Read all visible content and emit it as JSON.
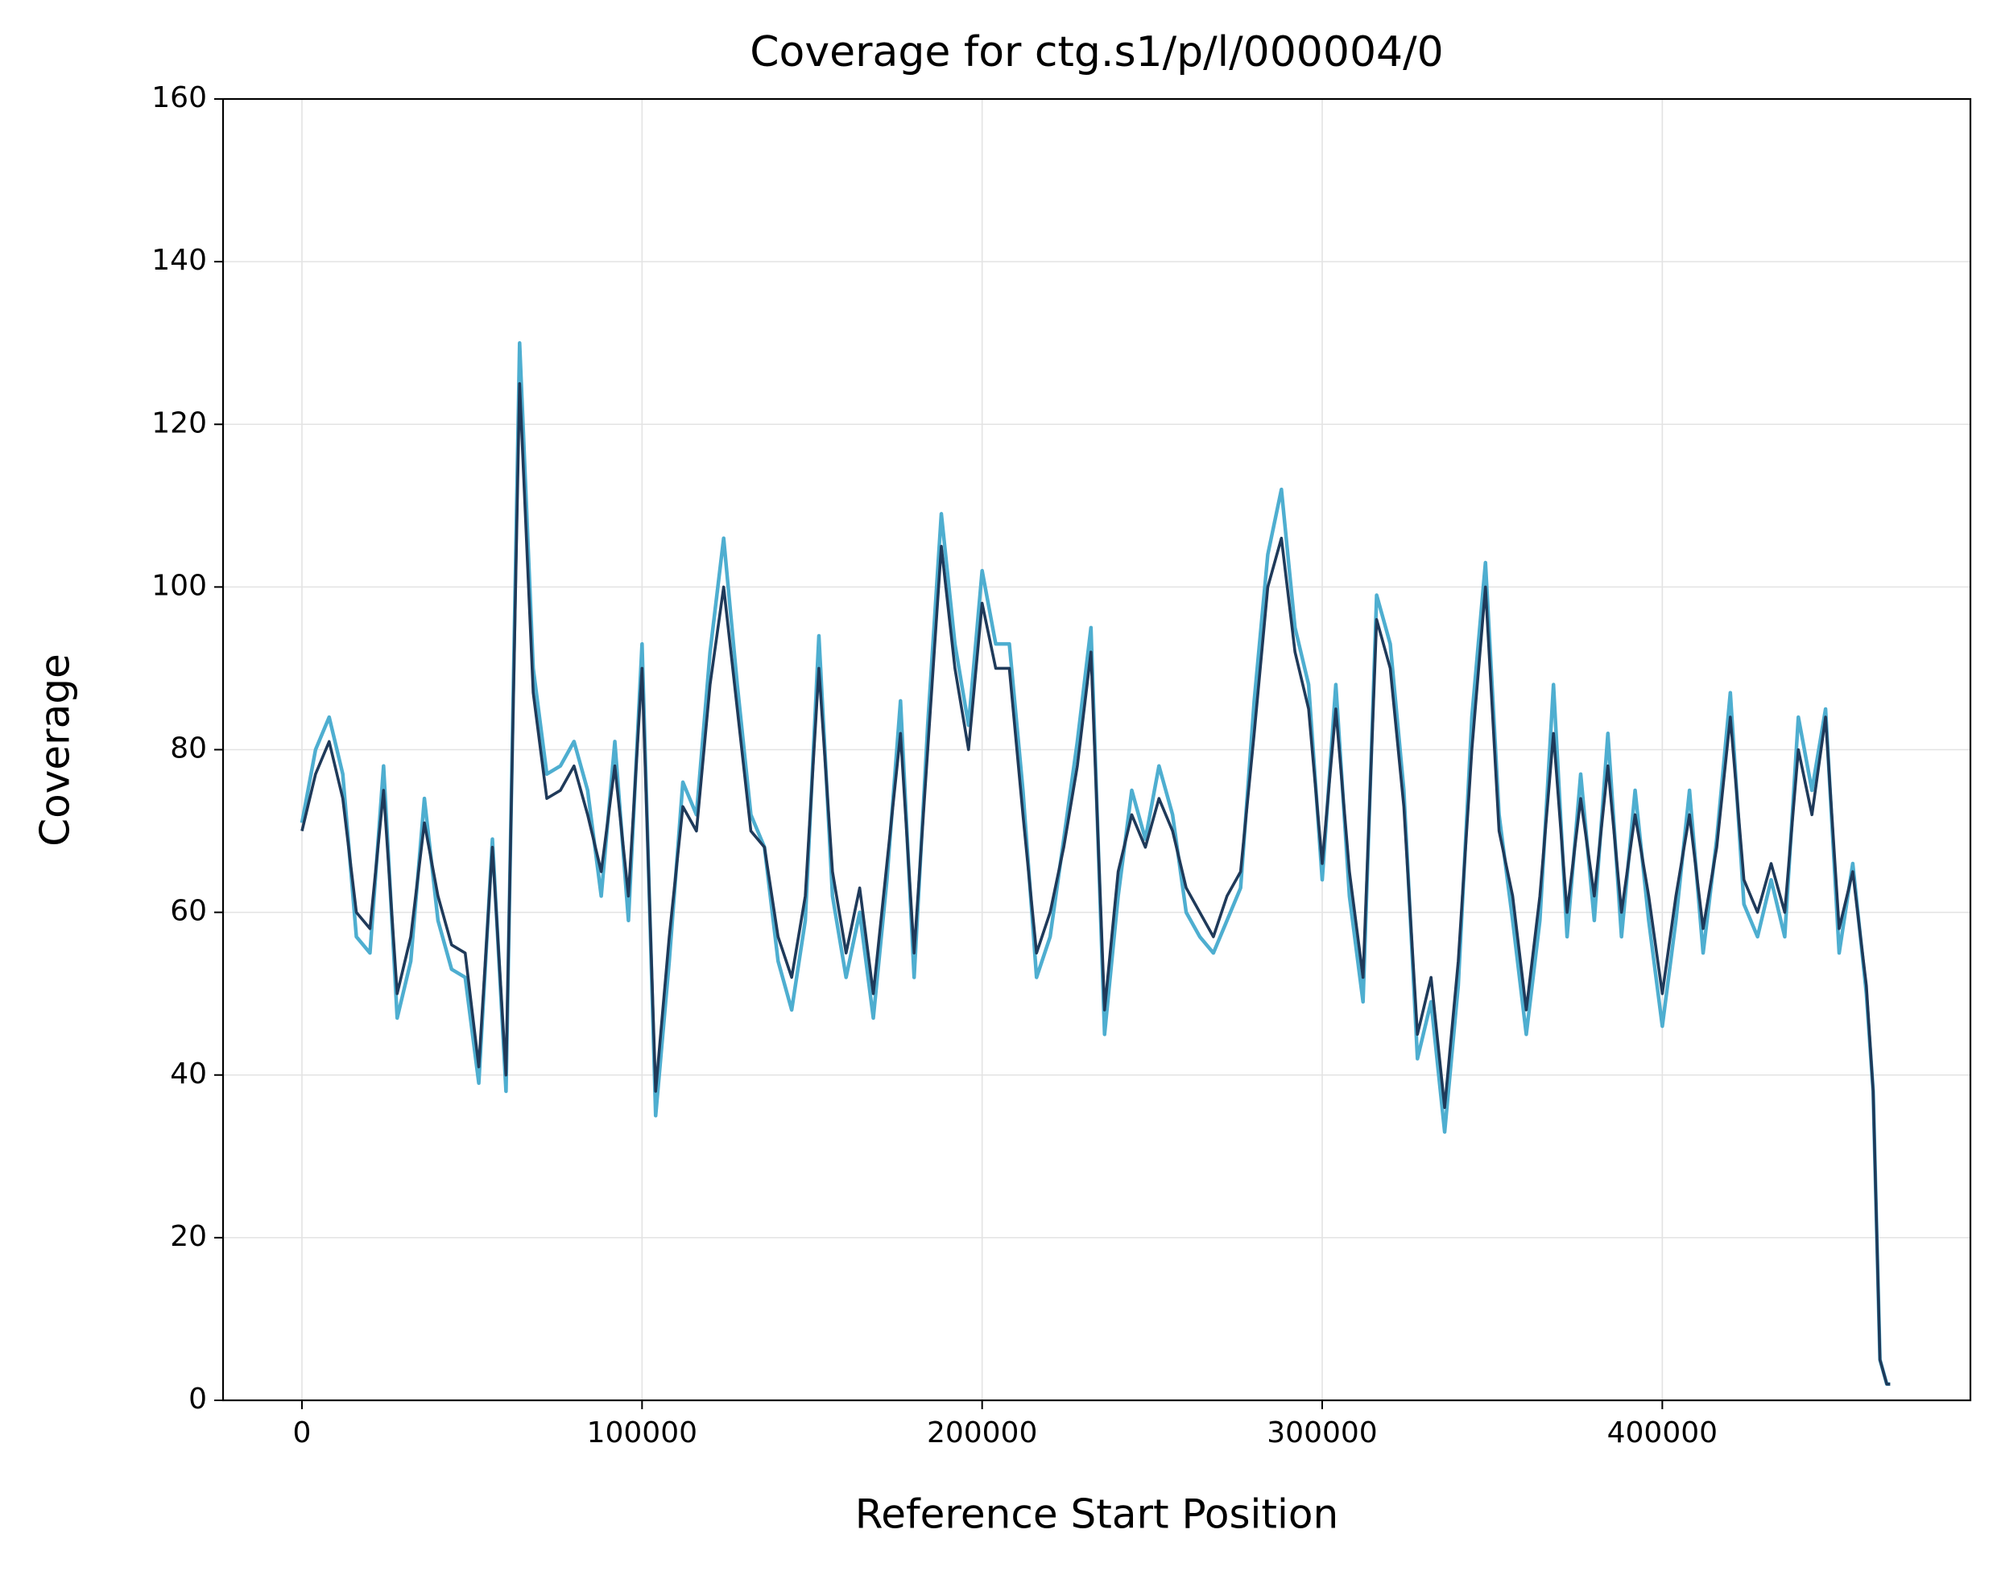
{
  "chart_data": {
    "type": "line",
    "title": "Coverage for ctg.s1/p/l/000004/0",
    "x_label": "Reference Start Position",
    "y_label": "Coverage",
    "x": [
      0,
      4000,
      8000,
      12000,
      16000,
      20000,
      24000,
      28000,
      32000,
      36000,
      40000,
      44000,
      48000,
      52000,
      56000,
      60000,
      64000,
      68000,
      72000,
      76000,
      80000,
      84000,
      88000,
      92000,
      96000,
      100000,
      104000,
      108000,
      112000,
      116000,
      120000,
      124000,
      128000,
      132000,
      136000,
      140000,
      144000,
      148000,
      152000,
      156000,
      160000,
      164000,
      168000,
      172000,
      176000,
      180000,
      184000,
      188000,
      192000,
      196000,
      200000,
      204000,
      208000,
      212000,
      216000,
      220000,
      224000,
      228000,
      232000,
      236000,
      240000,
      244000,
      248000,
      252000,
      256000,
      260000,
      264000,
      268000,
      272000,
      276000,
      280000,
      284000,
      288000,
      292000,
      296000,
      300000,
      304000,
      308000,
      312000,
      316000,
      320000,
      324000,
      328000,
      332000,
      336000,
      340000,
      344000,
      348000,
      352000,
      356000,
      360000,
      364000,
      368000,
      372000,
      376000,
      380000,
      384000,
      388000,
      392000,
      396000,
      400000,
      404000,
      408000,
      412000,
      416000,
      420000,
      424000,
      428000,
      432000,
      436000,
      440000,
      444000,
      448000,
      452000,
      456000,
      460000,
      462000,
      464000,
      466000,
      467000
    ],
    "series": [
      {
        "color": "#4eaed0",
        "values": [
          71,
          80,
          84,
          77,
          57,
          55,
          78,
          47,
          54,
          74,
          59,
          53,
          52,
          39,
          69,
          38,
          130,
          90,
          77,
          78,
          81,
          75,
          62,
          81,
          59,
          93,
          35,
          54,
          76,
          72,
          92,
          106,
          88,
          72,
          68,
          54,
          48,
          59,
          94,
          62,
          52,
          60,
          47,
          64,
          86,
          52,
          83,
          109,
          93,
          83,
          102,
          93,
          93,
          75,
          52,
          57,
          69,
          81,
          95,
          45,
          62,
          75,
          69,
          78,
          72,
          60,
          57,
          55,
          59,
          63,
          86,
          104,
          112,
          95,
          88,
          64,
          88,
          62,
          49,
          99,
          93,
          75,
          42,
          49,
          33,
          51,
          84,
          103,
          72,
          59,
          45,
          59,
          88,
          57,
          77,
          59,
          82,
          57,
          75,
          59,
          46,
          59,
          75,
          55,
          69,
          87,
          61,
          57,
          64,
          57,
          84,
          75,
          85,
          55,
          66,
          50,
          38,
          5,
          2,
          2
        ]
      },
      {
        "color": "#1f3a5a",
        "values": [
          70,
          77,
          81,
          74,
          60,
          58,
          75,
          50,
          57,
          71,
          62,
          56,
          55,
          41,
          68,
          40,
          125,
          87,
          74,
          75,
          78,
          72,
          65,
          78,
          62,
          90,
          38,
          57,
          73,
          70,
          88,
          100,
          85,
          70,
          68,
          57,
          52,
          62,
          90,
          65,
          55,
          63,
          50,
          66,
          82,
          55,
          80,
          105,
          90,
          80,
          98,
          90,
          90,
          72,
          55,
          60,
          68,
          78,
          92,
          48,
          65,
          72,
          68,
          74,
          70,
          63,
          60,
          57,
          62,
          65,
          82,
          100,
          106,
          92,
          85,
          66,
          85,
          65,
          52,
          96,
          90,
          73,
          45,
          52,
          36,
          54,
          80,
          100,
          70,
          62,
          48,
          62,
          82,
          60,
          74,
          62,
          78,
          60,
          72,
          62,
          50,
          62,
          72,
          58,
          68,
          84,
          64,
          60,
          66,
          60,
          80,
          72,
          84,
          58,
          65,
          51,
          38,
          5,
          2,
          2
        ]
      }
    ],
    "xlim": [
      -23200,
      490600
    ],
    "ylim": [
      0,
      160
    ],
    "xticks": [
      0,
      100000,
      200000,
      300000,
      400000
    ],
    "yticks": [
      0,
      20,
      40,
      60,
      80,
      100,
      120,
      140,
      160
    ],
    "grid": true
  }
}
